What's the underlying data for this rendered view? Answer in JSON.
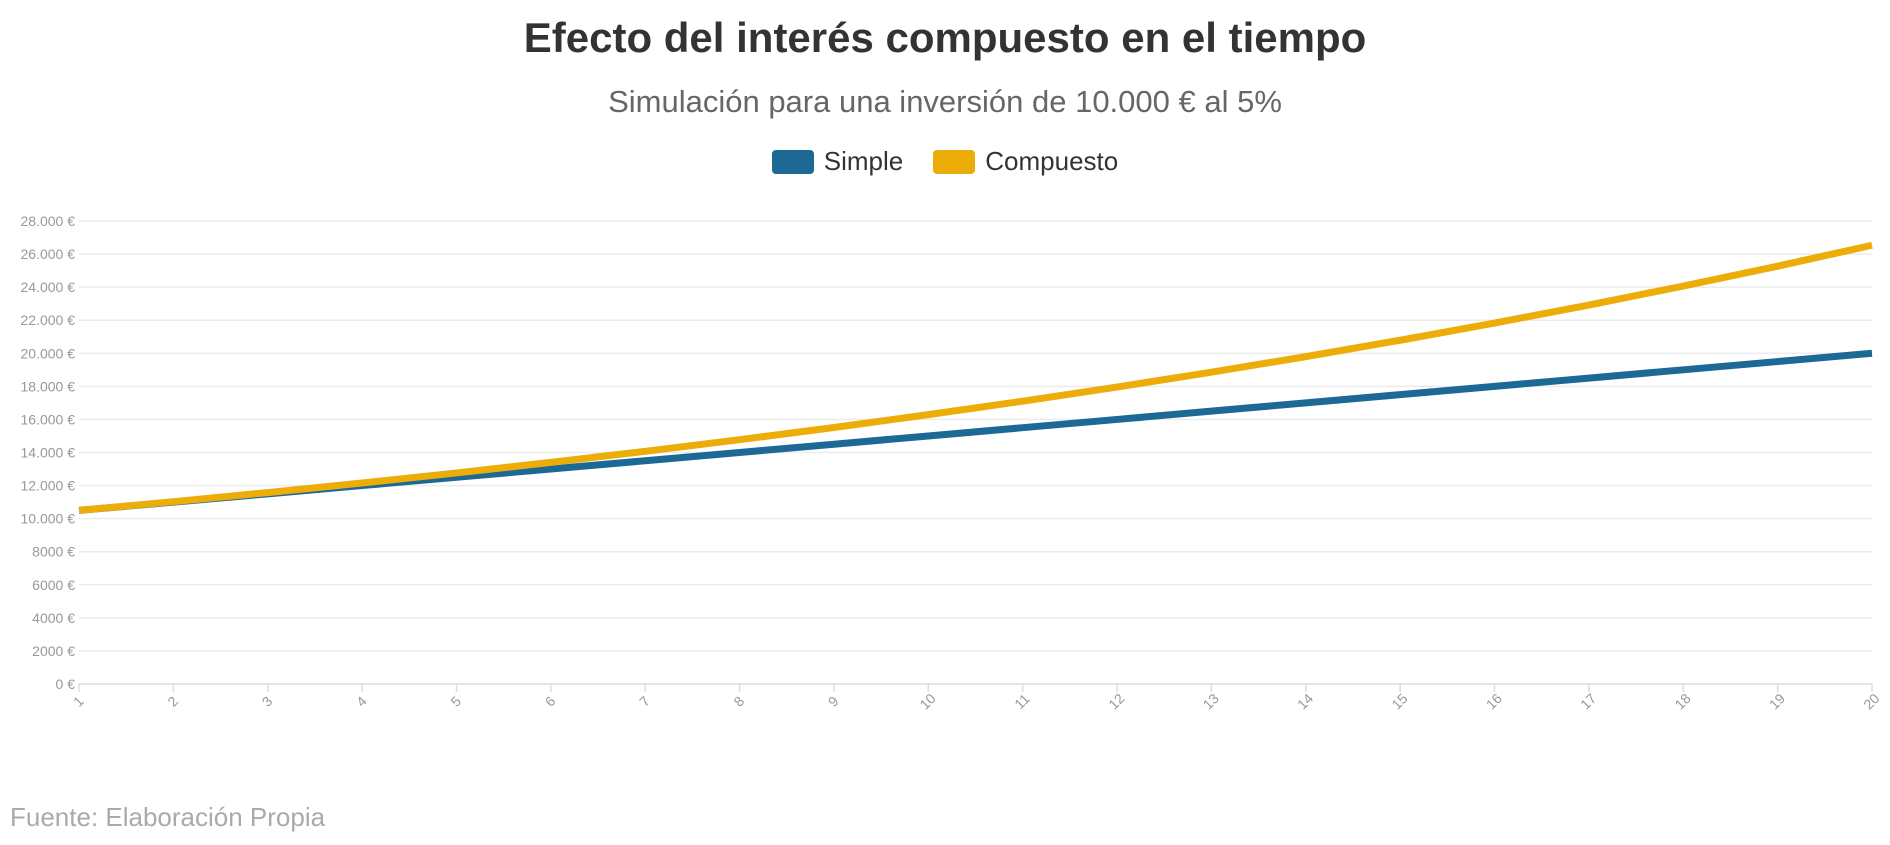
{
  "title": "Efecto del interés compuesto en el tiempo",
  "subtitle": "Simulación para una inversión de 10.000 € al 5%",
  "footer": "Fuente: Elaboración Propia",
  "chart_data": {
    "type": "line",
    "title": "Efecto del interés compuesto en el tiempo",
    "subtitle": "Simulación para una inversión de 10.000 € al 5%",
    "xlabel": "",
    "ylabel": "",
    "x": [
      1,
      2,
      3,
      4,
      5,
      6,
      7,
      8,
      9,
      10,
      11,
      12,
      13,
      14,
      15,
      16,
      17,
      18,
      19,
      20
    ],
    "ylim": [
      0,
      28000
    ],
    "yticks": [
      0,
      2000,
      4000,
      6000,
      8000,
      10000,
      12000,
      14000,
      16000,
      18000,
      20000,
      22000,
      24000,
      26000,
      28000
    ],
    "ytick_labels": [
      "0 €",
      "2000 €",
      "4000 €",
      "6000 €",
      "8000 €",
      "10.000 €",
      "12.000 €",
      "14.000 €",
      "16.000 €",
      "18.000 €",
      "20.000 €",
      "22.000 €",
      "24.000 €",
      "26.000 €",
      "28.000 €"
    ],
    "grid": true,
    "legend_position": "top-center",
    "series": [
      {
        "name": "Simple",
        "color": "#1d6996",
        "values": [
          10500,
          11000,
          11500,
          12000,
          12500,
          13000,
          13500,
          14000,
          14500,
          15000,
          15500,
          16000,
          16500,
          17000,
          17500,
          18000,
          18500,
          19000,
          19500,
          20000
        ]
      },
      {
        "name": "Compuesto",
        "color": "#edad08",
        "values": [
          10500,
          11025,
          11576,
          12155,
          12763,
          13401,
          14071,
          14775,
          15513,
          16289,
          17103,
          17959,
          18856,
          19799,
          20789,
          21829,
          22920,
          24066,
          25270,
          26533
        ]
      }
    ]
  }
}
